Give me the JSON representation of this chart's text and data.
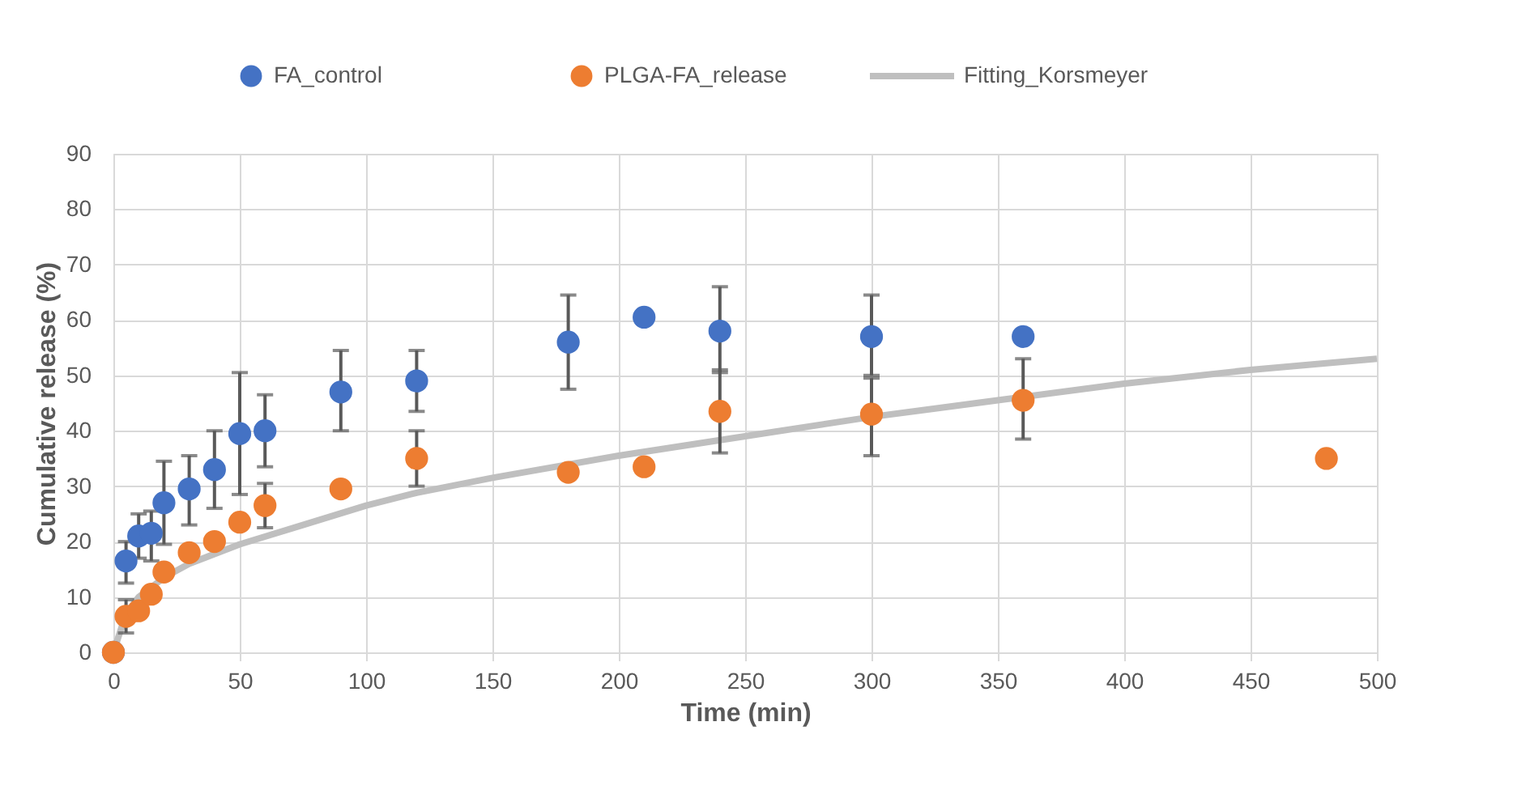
{
  "chart_data": {
    "type": "scatter",
    "xlabel": "Time (min)",
    "ylabel": "Cumulative release (%)",
    "xlim": [
      0,
      500
    ],
    "ylim": [
      0,
      90
    ],
    "xticks": [
      0,
      50,
      100,
      150,
      200,
      250,
      300,
      350,
      400,
      450,
      500
    ],
    "yticks": [
      0,
      10,
      20,
      30,
      40,
      50,
      60,
      70,
      80,
      90
    ],
    "grid": true,
    "legend": "top",
    "marker": "circle",
    "series": [
      {
        "name": "FA_control",
        "color": "#4472c4",
        "x": [
          0,
          5,
          10,
          15,
          20,
          30,
          40,
          50,
          60,
          90,
          120,
          180,
          210,
          240,
          300,
          360
        ],
        "values": [
          0,
          16.5,
          21,
          21.5,
          27,
          29.5,
          33,
          39.5,
          40,
          47,
          49,
          56,
          60.5,
          58,
          57,
          57
        ],
        "errors": [
          null,
          [
            12.5,
            20
          ],
          [
            17,
            25
          ],
          [
            16.5,
            25.5
          ],
          [
            19.5,
            34.5
          ],
          [
            23,
            35.5
          ],
          [
            26,
            40
          ],
          [
            28.5,
            50.5
          ],
          [
            33.5,
            46.5
          ],
          [
            40,
            54.5
          ],
          [
            43.5,
            54.5
          ],
          [
            47.5,
            64.5
          ],
          null,
          [
            50.5,
            66
          ],
          [
            50,
            64.5
          ],
          null
        ]
      },
      {
        "name": "PLGA-FA_release",
        "color": "#ed7d31",
        "x": [
          0,
          5,
          10,
          15,
          20,
          30,
          40,
          50,
          60,
          90,
          120,
          180,
          210,
          240,
          300,
          360,
          480
        ],
        "values": [
          0,
          6.5,
          7.5,
          10.5,
          14.5,
          18,
          20,
          23.5,
          26.5,
          29.5,
          35,
          32.5,
          33.5,
          43.5,
          43,
          45.5,
          35
        ],
        "errors": [
          null,
          [
            3.5,
            9.5
          ],
          null,
          null,
          null,
          null,
          null,
          null,
          [
            22.5,
            30.5
          ],
          null,
          [
            30,
            40
          ],
          null,
          null,
          [
            36,
            51
          ],
          [
            35.5,
            49.5
          ],
          [
            38.5,
            53
          ],
          null
        ]
      },
      {
        "name": "Fitting_Korsmeyer",
        "color": "#bfbfbf",
        "type": "line",
        "marker": "none",
        "x": [
          0,
          5,
          10,
          20,
          30,
          50,
          75,
          100,
          120,
          150,
          200,
          250,
          300,
          350,
          400,
          450,
          500
        ],
        "values": [
          0,
          7,
          10,
          13.5,
          16,
          19.5,
          23,
          26.5,
          28.8,
          31.5,
          35.5,
          39,
          42.5,
          45.5,
          48.5,
          51,
          53
        ]
      }
    ]
  }
}
